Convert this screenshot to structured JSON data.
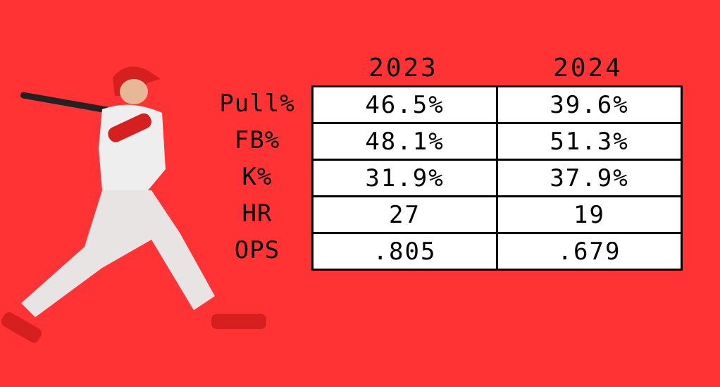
{
  "chart_data": {
    "type": "table",
    "columns": [
      "2023",
      "2024"
    ],
    "rows": [
      {
        "label": "Pull%",
        "values": [
          "46.5%",
          "39.6%"
        ]
      },
      {
        "label": "FB%",
        "values": [
          "48.1%",
          "51.3%"
        ]
      },
      {
        "label": "K%",
        "values": [
          "31.9%",
          "37.9%"
        ]
      },
      {
        "label": "HR",
        "values": [
          "27",
          "19"
        ]
      },
      {
        "label": "OPS",
        "values": [
          ".805",
          ".679"
        ]
      }
    ]
  },
  "colors": {
    "background": "#ff3333",
    "table_fill": "#ffffff",
    "text": "#000000"
  }
}
